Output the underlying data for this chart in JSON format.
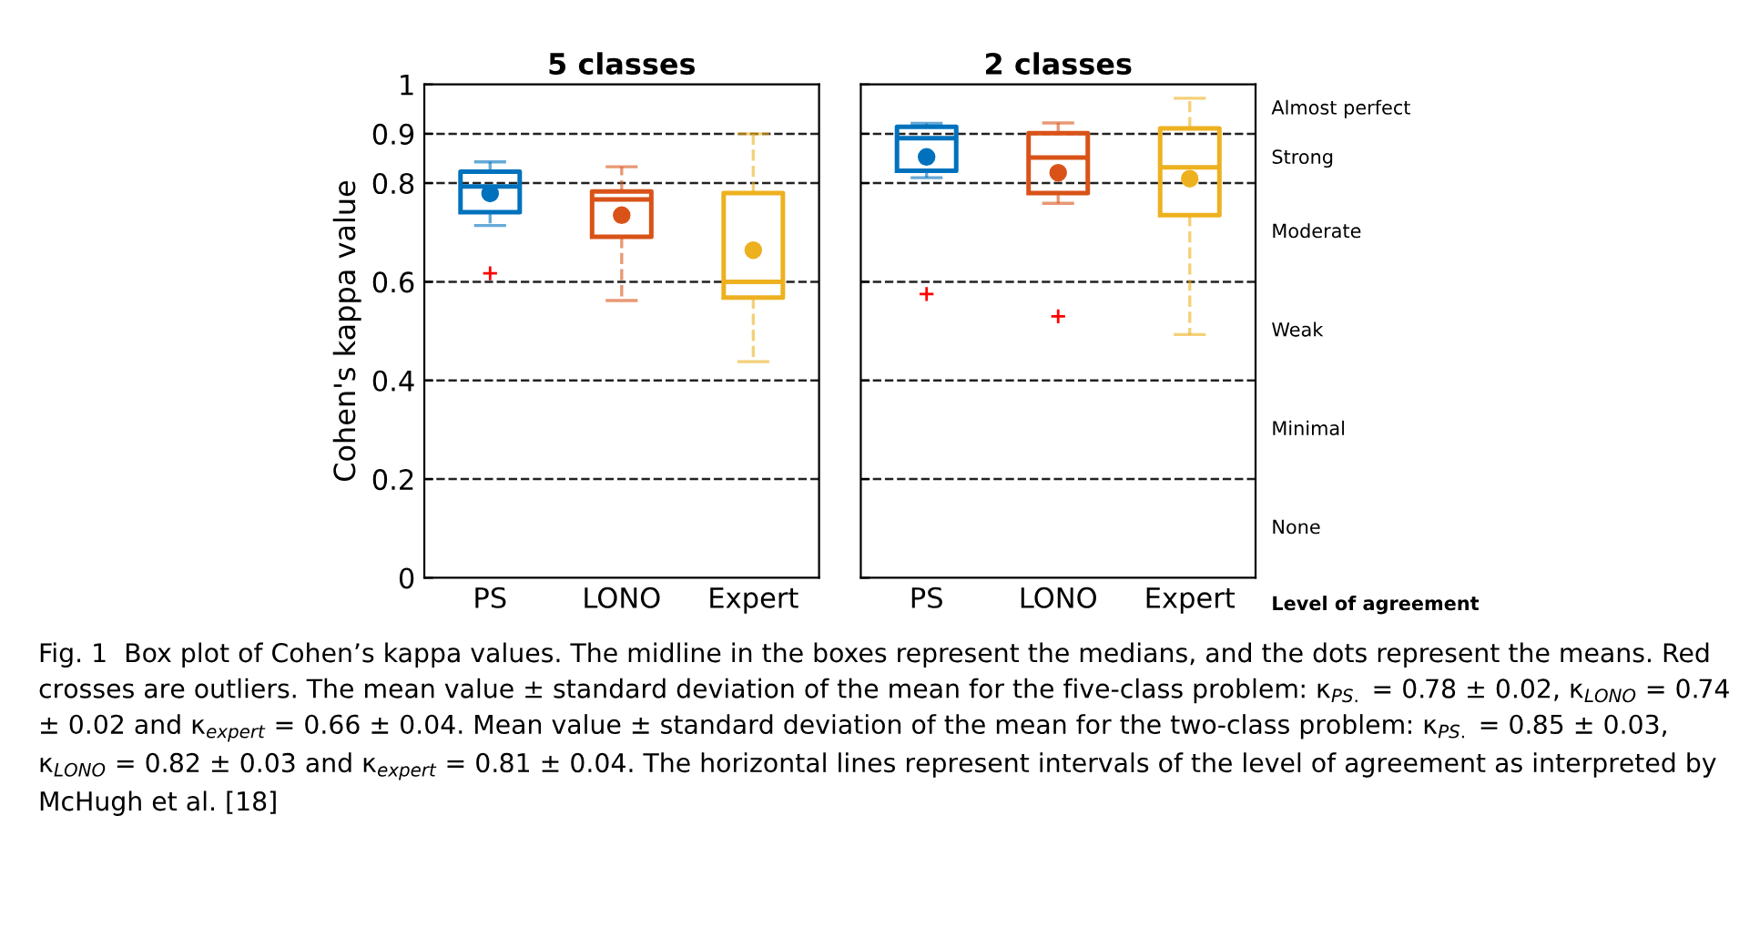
{
  "chart_data": [
    {
      "type": "box",
      "title": "5 classes",
      "ylabel": "Cohen's kappa value",
      "categories": [
        "PS",
        "LONO",
        "Expert"
      ],
      "colors": [
        "#0072bd",
        "#d95319",
        "#edb120"
      ],
      "ylim": [
        0,
        1
      ],
      "yticks": [
        0,
        0.2,
        0.4,
        0.6,
        0.8,
        0.9,
        1
      ],
      "grid": false,
      "boxes": [
        {
          "low": 0.714,
          "q1": 0.741,
          "median": 0.793,
          "q3": 0.823,
          "high": 0.843,
          "mean": 0.779,
          "outliers": [
            0.617
          ]
        },
        {
          "low": 0.562,
          "q1": 0.691,
          "median": 0.767,
          "q3": 0.783,
          "high": 0.833,
          "mean": 0.735
        },
        {
          "low": 0.438,
          "q1": 0.568,
          "median": 0.6,
          "q3": 0.78,
          "high": 0.9,
          "mean": 0.664
        }
      ],
      "ref_lines": [
        {
          "axis": "y",
          "value": 0.2,
          "line_style": "dashed"
        },
        {
          "axis": "y",
          "value": 0.4,
          "line_style": "dashed"
        },
        {
          "axis": "y",
          "value": 0.6,
          "line_style": "dashed"
        },
        {
          "axis": "y",
          "value": 0.8,
          "line_style": "dashed"
        },
        {
          "axis": "y",
          "value": 0.9,
          "line_style": "dashed"
        }
      ]
    },
    {
      "type": "box",
      "title": "2 classes",
      "categories": [
        "PS",
        "LONO",
        "Expert"
      ],
      "colors": [
        "#0072bd",
        "#d95319",
        "#edb120"
      ],
      "ylim": [
        0,
        1
      ],
      "yticks": [
        0,
        0.2,
        0.4,
        0.6,
        0.8,
        0.9,
        1
      ],
      "tick_labels": "x",
      "grid": false,
      "boxes": [
        {
          "low": 0.811,
          "q1": 0.825,
          "median": 0.891,
          "q3": 0.914,
          "high": 0.921,
          "mean": 0.853,
          "outliers": [
            0.575
          ]
        },
        {
          "low": 0.759,
          "q1": 0.78,
          "median": 0.852,
          "q3": 0.901,
          "high": 0.922,
          "mean": 0.821,
          "outliers": [
            0.53
          ]
        },
        {
          "low": 0.493,
          "q1": 0.735,
          "median": 0.832,
          "q3": 0.911,
          "high": 0.972,
          "mean": 0.809
        }
      ],
      "ref_lines": [
        {
          "axis": "y",
          "value": 0.2,
          "line_style": "dashed"
        },
        {
          "axis": "y",
          "value": 0.4,
          "line_style": "dashed"
        },
        {
          "axis": "y",
          "value": 0.6,
          "line_style": "dashed"
        },
        {
          "axis": "y",
          "value": 0.8,
          "line_style": "dashed"
        },
        {
          "axis": "y",
          "value": 0.9,
          "line_style": "dashed"
        }
      ],
      "annotations": [
        "Almost perfect",
        "Strong",
        "Moderate",
        "Weak",
        "Minimal",
        "None",
        "Level of agreement",
        "Fig. 1  Box plot of Cohen’s kappa values. The midline in the boxes represent the medians, and the dots represent the means. Red crosses are outliers. The mean value ± standard deviation of the mean for the five-class problem: κ$_{PS.}$ = 0.78 ± 0.02, κ$_{LONO}$ = 0.74 ± 0.02 and κ$_{expert}$ = 0.66 ± 0.04. Mean value ± standard deviation of the mean for the two-class problem: κ$_{PS.}$ = 0.85 ± 0.03, κ$_{LONO}$ = 0.82 ± 0.03 and κ$_{expert}$ = 0.81 ± 0.04. The horizontal lines represent intervals of the level of agreement as interpreted by McHugh et al. [18]"
      ]
    }
  ]
}
